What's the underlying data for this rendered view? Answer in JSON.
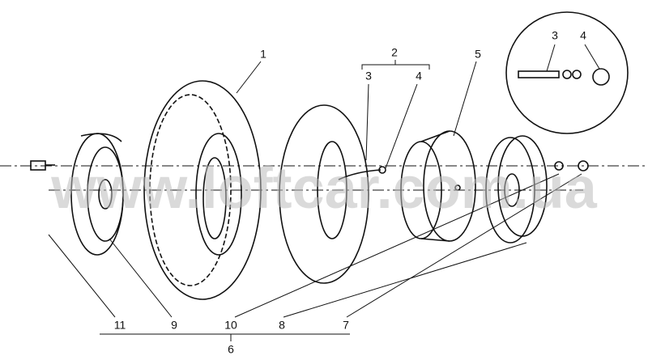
{
  "callouts": [
    {
      "label": "1"
    },
    {
      "label": "2"
    },
    {
      "label": "3"
    },
    {
      "label": "4"
    },
    {
      "label": "5"
    },
    {
      "label": "6"
    },
    {
      "label": "7"
    },
    {
      "label": "8"
    },
    {
      "label": "9"
    },
    {
      "label": "10"
    },
    {
      "label": "11"
    }
  ],
  "inset": {
    "callouts": [
      {
        "label": "3"
      },
      {
        "label": "4"
      }
    ]
  },
  "watermark": "www.loftcar.com.ua"
}
